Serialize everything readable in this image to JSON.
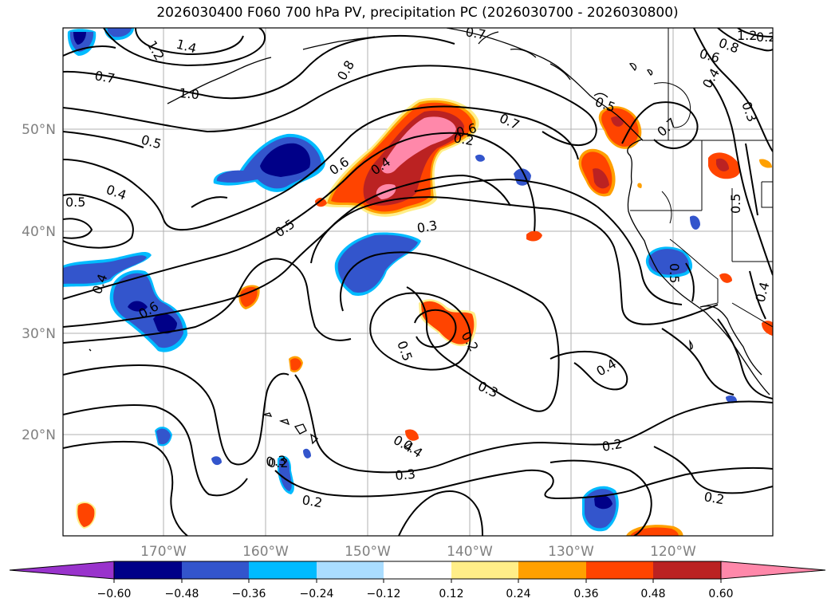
{
  "title": "2026030400 F060 700 hPa PV, precipitation PC (2026030700 - 2026030800)",
  "lat_labels": [
    "50°N",
    "40°N",
    "30°N",
    "20°N"
  ],
  "lon_labels": [
    "170°W",
    "160°W",
    "150°W",
    "140°W",
    "130°W",
    "120°W"
  ],
  "colorbar": {
    "ticks": [
      "−0.60",
      "−0.48",
      "−0.36",
      "−0.24",
      "−0.12",
      "0.12",
      "0.24",
      "0.36",
      "0.48",
      "0.60"
    ],
    "colors": {
      "under": "#9933cc",
      "n060": "#000088",
      "n048": "#3355cc",
      "n036": "#00bbff",
      "n024": "#aaddff",
      "n012": "#ffffff",
      "p012": "#ffee88",
      "p024": "#ffa000",
      "p036": "#ff4400",
      "p048": "#bb2222",
      "over": "#ff88aa"
    }
  },
  "contour_labels": [
    "0.5",
    "0.4",
    "0.5",
    "0.4",
    "0.6",
    "0.7",
    "1.0",
    "1.4",
    "1.2",
    "0.8",
    "0.6",
    "0.7",
    "0.4",
    "0.3",
    "0.5",
    "0.7",
    "0.5",
    "0.7",
    "0.8",
    "0.6",
    "0.4",
    "0.3",
    "0.5",
    "0.5",
    "0.4",
    "0.6",
    "0.4",
    "0.2",
    "0.3",
    "0.5",
    "0.2",
    "0.3",
    "0.4",
    "0.4",
    "0.2",
    "0.3",
    "0.2",
    "0.2",
    "0.2",
    "1.2",
    "0.2"
  ]
}
